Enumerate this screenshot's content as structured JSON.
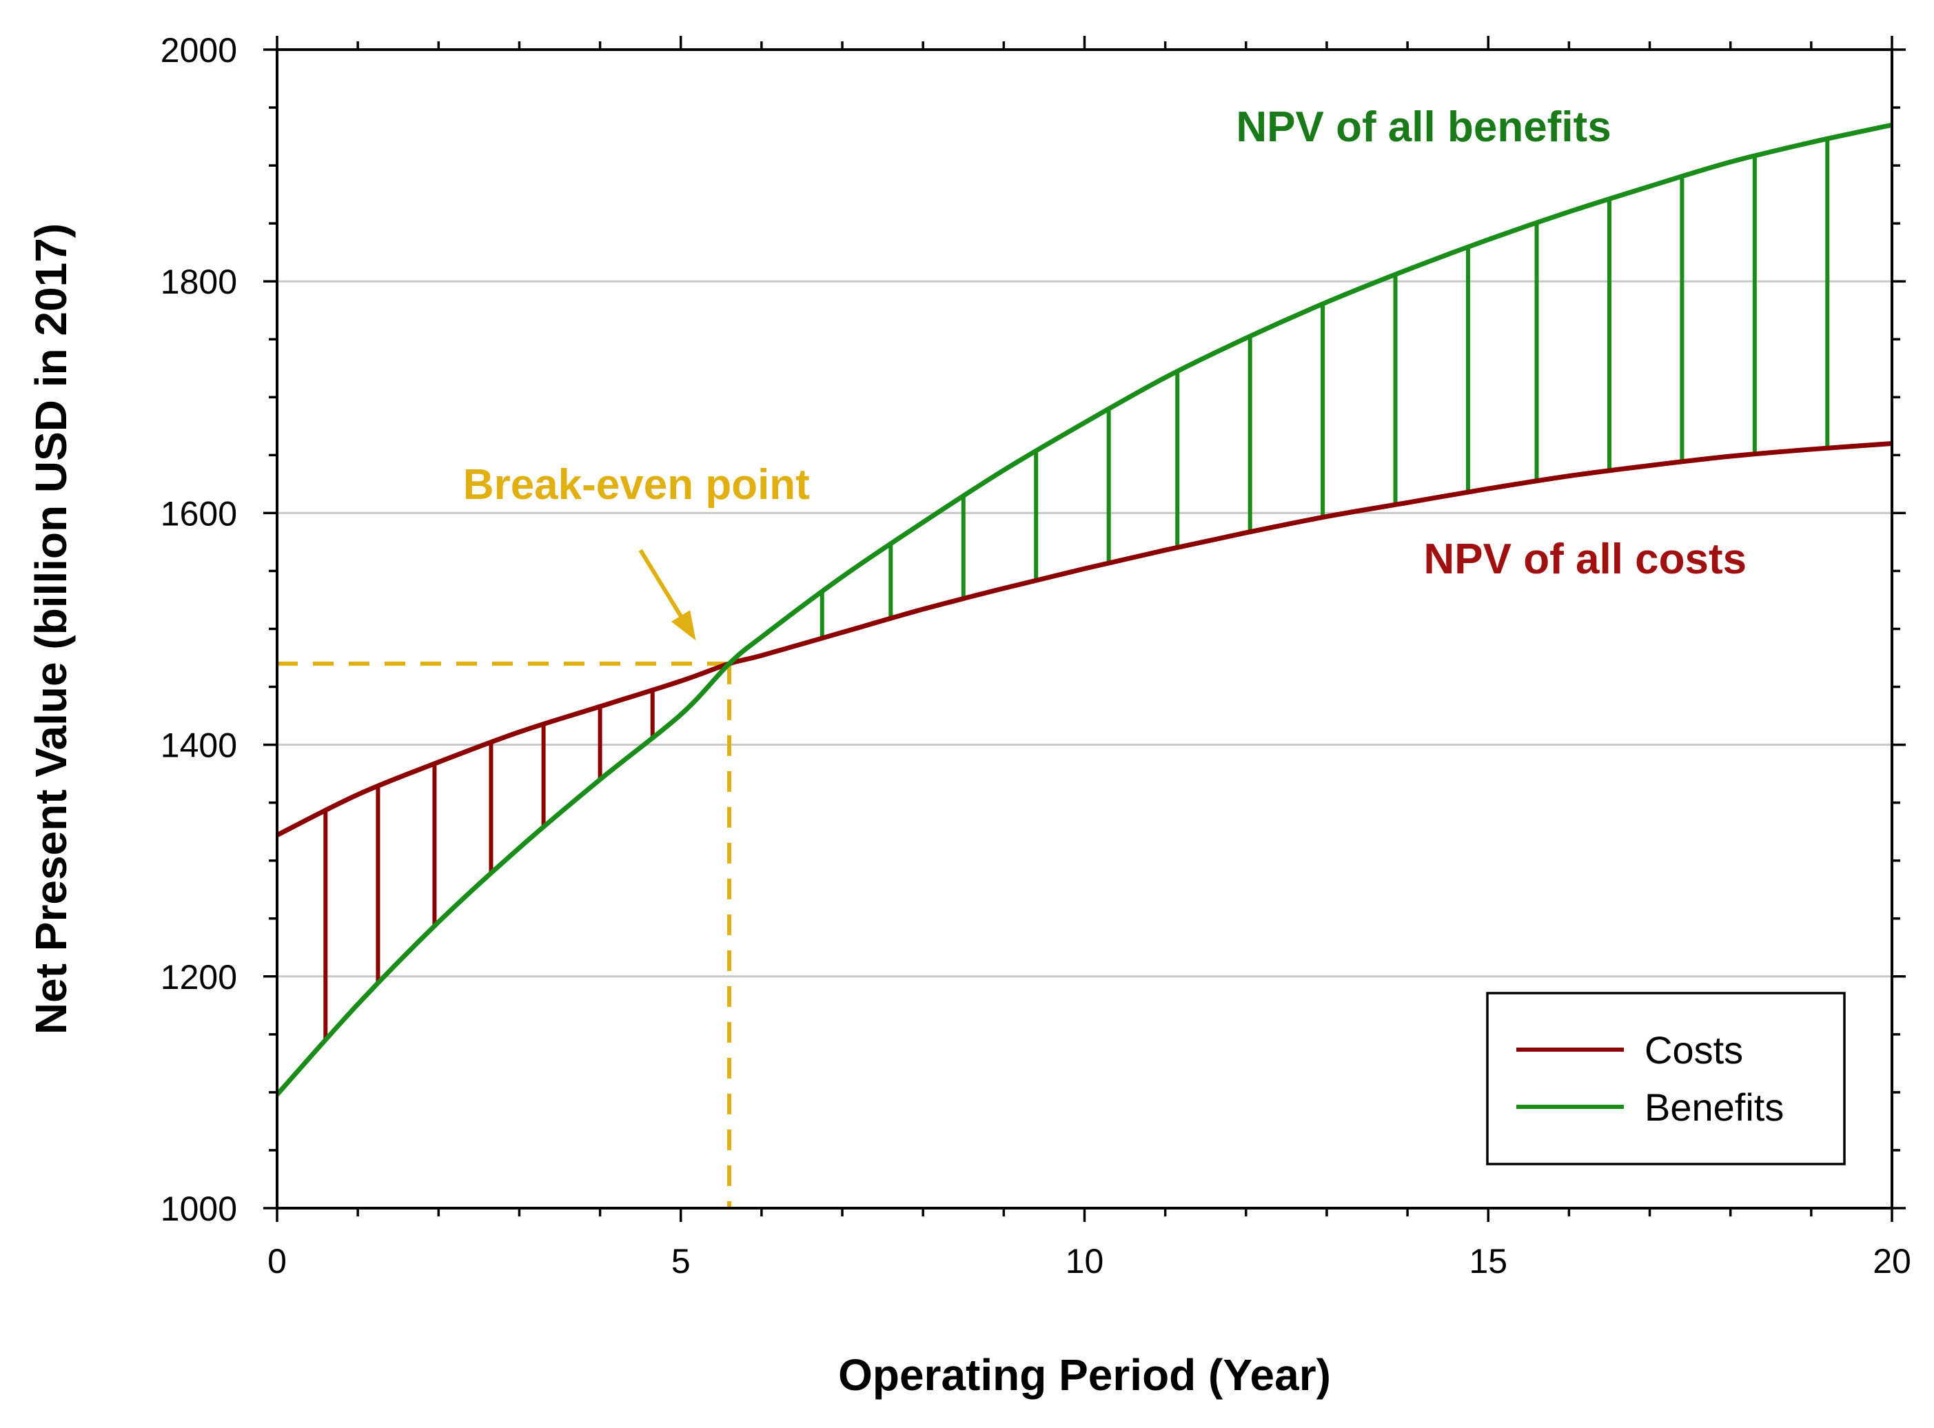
{
  "chart_data": {
    "type": "line",
    "xlabel": "Operating Period (Year)",
    "ylabel": "Net Present Value (billion USD in 2017)",
    "xlim": [
      0,
      20
    ],
    "ylim": [
      1000,
      2000
    ],
    "xticks": [
      0,
      5,
      10,
      15,
      20
    ],
    "xtick_labels": [
      "0",
      "5",
      "10",
      "15",
      "20"
    ],
    "yticks": [
      1000,
      1200,
      1400,
      1600,
      1800,
      2000
    ],
    "ytick_labels": [
      "1000",
      "1200",
      "1400",
      "1600",
      "1800",
      "2000"
    ],
    "grid": "horizontal",
    "series": [
      {
        "name": "Costs",
        "color": "#8b0000",
        "x": [
          0,
          1,
          2,
          3,
          4,
          5,
          5.6,
          6,
          7,
          8,
          9,
          10,
          11,
          12,
          13,
          14,
          15,
          16,
          17,
          18,
          19,
          20
        ],
        "values": [
          1322,
          1357,
          1385,
          1411,
          1433,
          1455,
          1470,
          1477,
          1497,
          1517,
          1535,
          1552,
          1568,
          1583,
          1597,
          1609,
          1621,
          1632,
          1641,
          1649,
          1655,
          1660
        ]
      },
      {
        "name": "Benefits",
        "color": "#1a8c1a",
        "x": [
          0,
          1,
          2,
          3,
          4,
          5,
          5.6,
          6,
          7,
          8,
          9,
          10,
          11,
          12,
          13,
          14,
          15,
          16,
          17,
          18,
          19,
          20
        ],
        "values": [
          1098,
          1176,
          1247,
          1311,
          1370,
          1426,
          1470,
          1493,
          1545,
          1592,
          1637,
          1678,
          1717,
          1751,
          1782,
          1810,
          1836,
          1860,
          1882,
          1903,
          1920,
          1935
        ]
      }
    ],
    "legend": {
      "position": "bottom-right",
      "entries": [
        "Costs",
        "Benefits"
      ]
    },
    "annotations": {
      "benefits_label": "NPV of all benefits",
      "costs_label": "NPV of all costs",
      "break_even_label": "Break-even point",
      "break_even_x": 5.6,
      "break_even_y": 1470
    },
    "annotation_colors": {
      "break_even": "#e0b012",
      "benefits_label": "#1a7a1a",
      "costs_label": "#a01010"
    },
    "difference_lines_x": [
      0.6,
      1.25,
      1.95,
      2.65,
      3.3,
      4.0,
      4.65,
      6.75,
      7.6,
      8.5,
      9.4,
      10.3,
      11.15,
      12.05,
      12.95,
      13.85,
      14.75,
      15.6,
      16.5,
      17.4,
      18.3,
      19.2
    ]
  }
}
